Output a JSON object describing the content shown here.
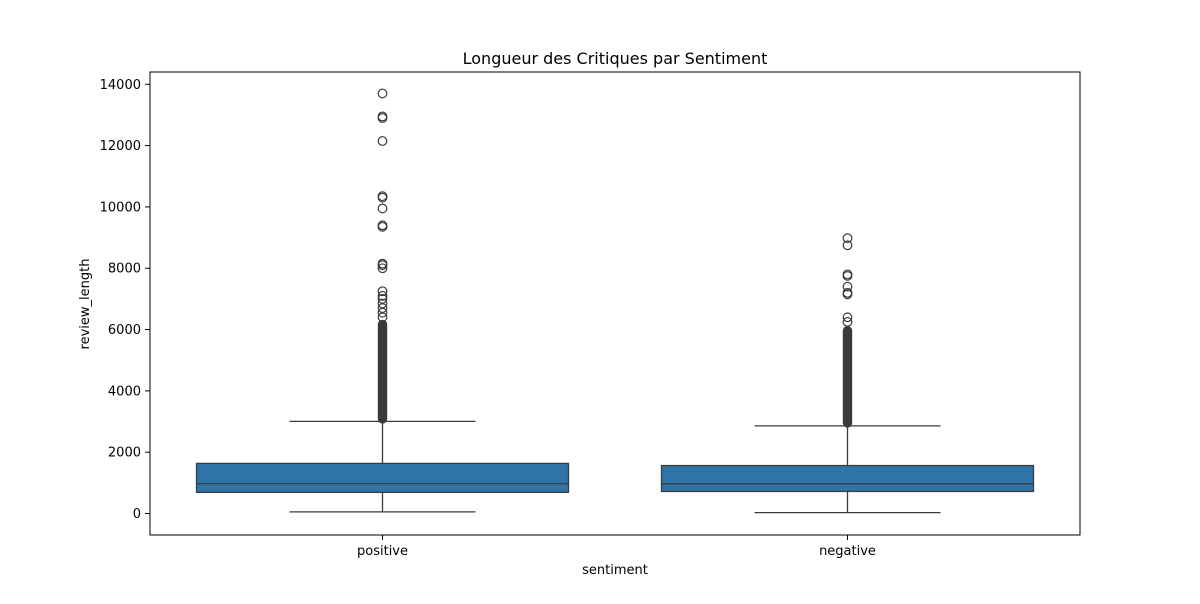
{
  "chart_data": {
    "type": "box",
    "title": "Longueur des Critiques par Sentiment",
    "xlabel": "sentiment",
    "ylabel": "review_length",
    "ylim": [
      -700,
      14400
    ],
    "yticks": [
      0,
      2000,
      4000,
      6000,
      8000,
      10000,
      12000,
      14000
    ],
    "categories": [
      "positive",
      "negative"
    ],
    "grid": false,
    "box_color": "#2f74a8",
    "line_color": "#3b3b3b",
    "series": [
      {
        "category": "positive",
        "whisker_low": 55,
        "q1": 690,
        "median": 975,
        "q3": 1635,
        "whisker_high": 3005,
        "dense_outliers": [
          2950,
          6300
        ],
        "outliers": [
          6400,
          6550,
          6700,
          6850,
          7000,
          7100,
          7250,
          8000,
          8100,
          8150,
          9350,
          9400,
          9950,
          10300,
          10350,
          12150,
          12900,
          12950,
          13700
        ]
      },
      {
        "category": "negative",
        "whisker_low": 30,
        "q1": 720,
        "median": 970,
        "q3": 1565,
        "whisker_high": 2860,
        "dense_outliers": [
          2820,
          6100
        ],
        "outliers": [
          6250,
          6400,
          7150,
          7200,
          7400,
          7750,
          7800,
          8750,
          8980
        ]
      }
    ]
  }
}
